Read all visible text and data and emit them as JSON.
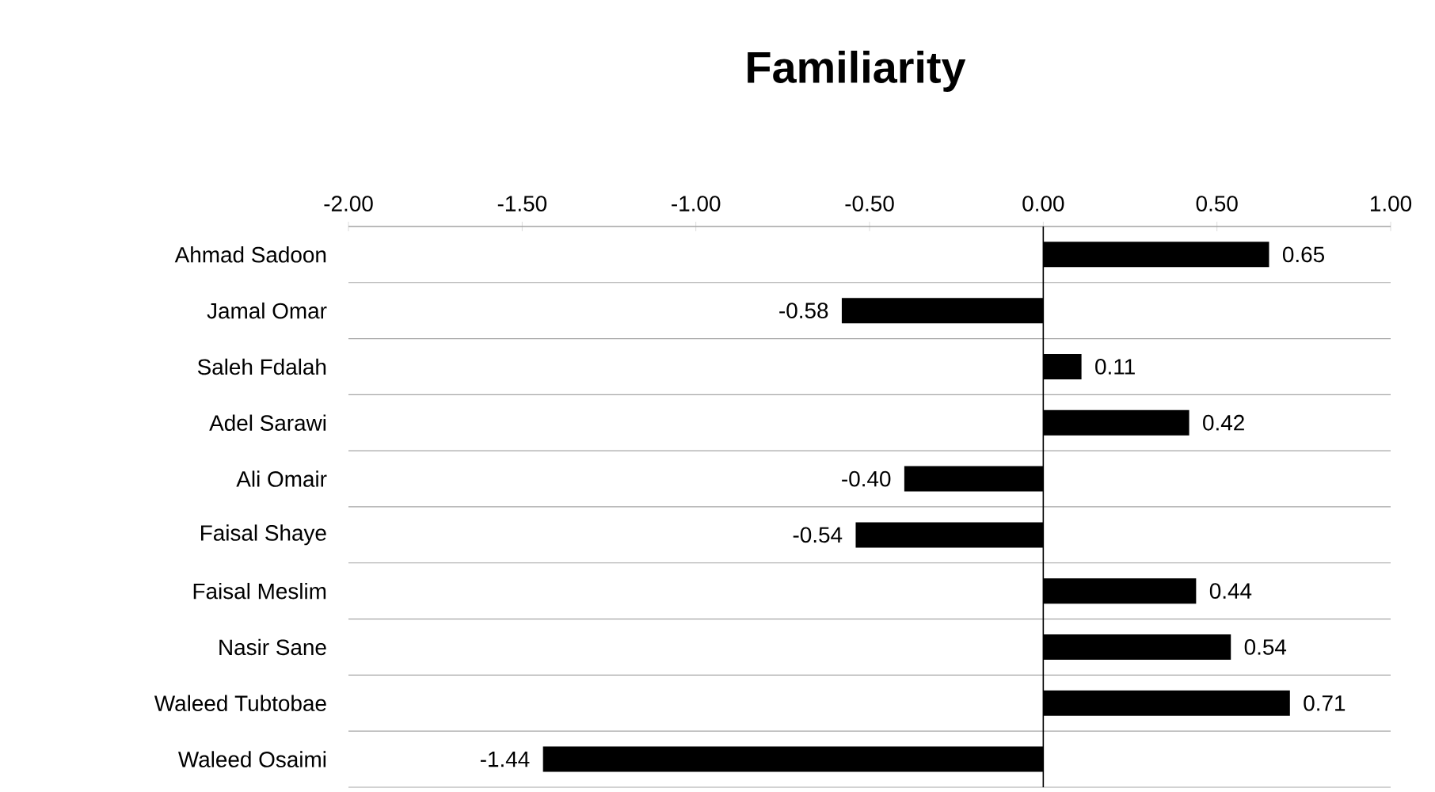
{
  "chart_data": {
    "type": "bar",
    "orientation": "horizontal",
    "title": "Familiarity",
    "categories": [
      "Ahmad Sadoon",
      "Jamal Omar",
      "Saleh Fdalah",
      "Adel Sarawi",
      "Ali Omair",
      "Faisal Shaye",
      "Faisal Meslim",
      "Nasir Sane",
      "Waleed Tubtobae",
      "Waleed Osaimi"
    ],
    "values": [
      0.65,
      -0.58,
      0.11,
      0.42,
      -0.4,
      -0.54,
      0.44,
      0.54,
      0.71,
      -1.44
    ],
    "value_labels": [
      "0.65",
      "-0.58",
      "0.11",
      "0.42",
      "-0.40",
      "-0.54",
      "0.44",
      "0.54",
      "0.71",
      "-1.44"
    ],
    "color": "#000000",
    "xlim": [
      -2,
      1
    ],
    "xticks": [
      {
        "value": -2,
        "label": "-2.00"
      },
      {
        "value": -1.5,
        "label": "-1.50"
      },
      {
        "value": -1,
        "label": "-1.00"
      },
      {
        "value": -0.5,
        "label": "-0.50"
      },
      {
        "value": 0,
        "label": "0.00"
      },
      {
        "value": 0.5,
        "label": "0.50"
      },
      {
        "value": 1,
        "label": "1.00"
      }
    ],
    "grid": "y"
  }
}
